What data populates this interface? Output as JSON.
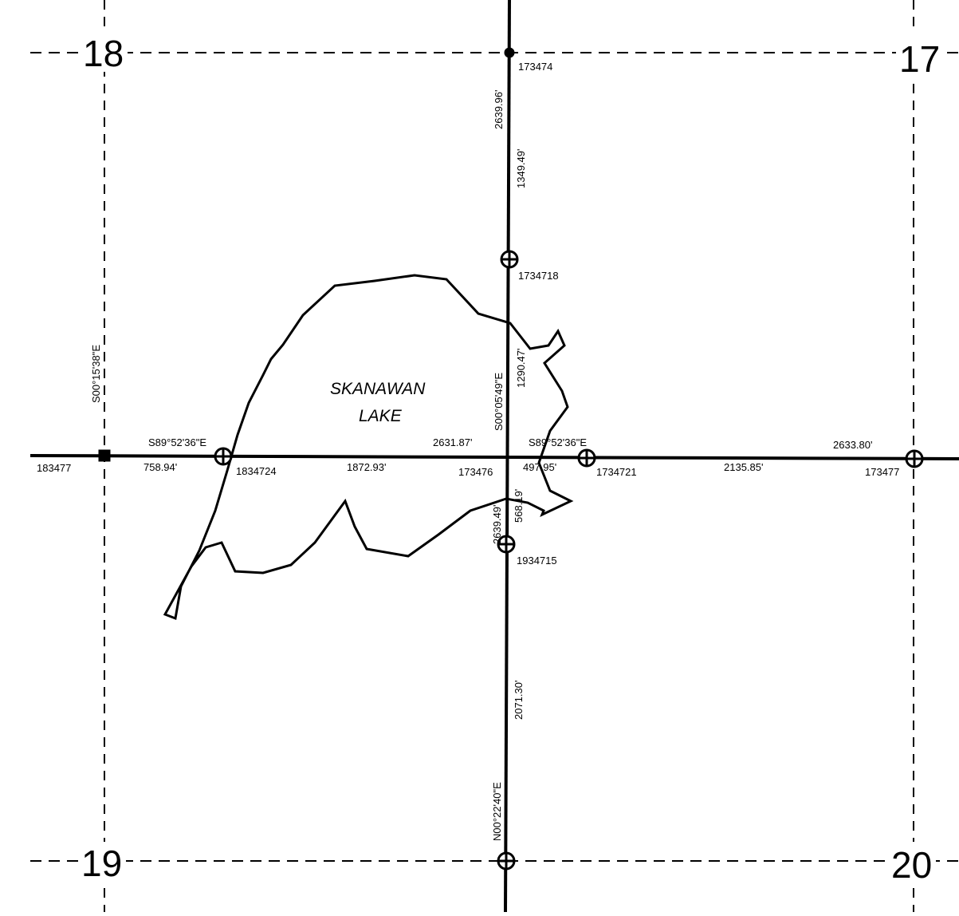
{
  "map": {
    "sections": {
      "nw": "18",
      "ne": "17",
      "sw": "19",
      "se": "20"
    },
    "lake": {
      "line1": "SKANAWAN",
      "line2": "LAKE"
    },
    "corners": {
      "north_quarter": "173474",
      "center_north": "1734718",
      "west_section": "183477",
      "west_sixteenth": "1834724",
      "center": "173476",
      "east_sixteenth": "1734721",
      "east_section": "173477",
      "center_south": "1934715"
    },
    "bearings": {
      "west_line": "S00°15'38\"E",
      "ew_west": "S89°52'36\"E",
      "ew_east": "S89°52'36\"E",
      "center_north": "S00°05'49\"E",
      "center_south": "N00°22'40\"E"
    },
    "distances": {
      "ns_north_total": "2639.96'",
      "ns_north_upper": "1349.49'",
      "ns_north_lower": "1290.47'",
      "ew_west_seg1": "758.94'",
      "ew_west_seg2": "1872.93'",
      "ew_west_total": "2631.87'",
      "ew_east_seg1": "497.95'",
      "ew_east_seg2": "2135.85'",
      "ew_east_total": "2633.80'",
      "ns_south_total": "2639.49'",
      "ns_south_upper": "568.19'",
      "ns_south_lower": "2071.30'"
    },
    "colors": {
      "ink": "#000000",
      "paper": "#ffffff"
    }
  }
}
